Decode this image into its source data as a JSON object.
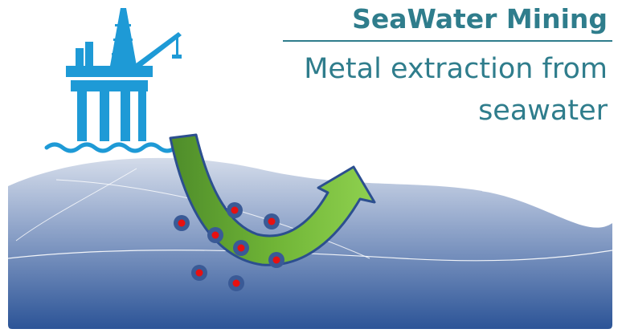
{
  "title": "SeaWater Mining",
  "subtitle": "Metal extraction from seawater",
  "colors": {
    "title": "#2f7d8c",
    "rig": "#1e9ad6",
    "wave_light": "#c2cee0",
    "wave_dark": "#2c5497",
    "arrow_dark": "#4e8c2a",
    "arrow_light": "#7cc242",
    "particle_outer": "#3a5a96",
    "particle_inner": "#e81010"
  },
  "icons": [
    "oil-rig-icon",
    "extraction-arrow-icon",
    "metal-particle-icon"
  ]
}
